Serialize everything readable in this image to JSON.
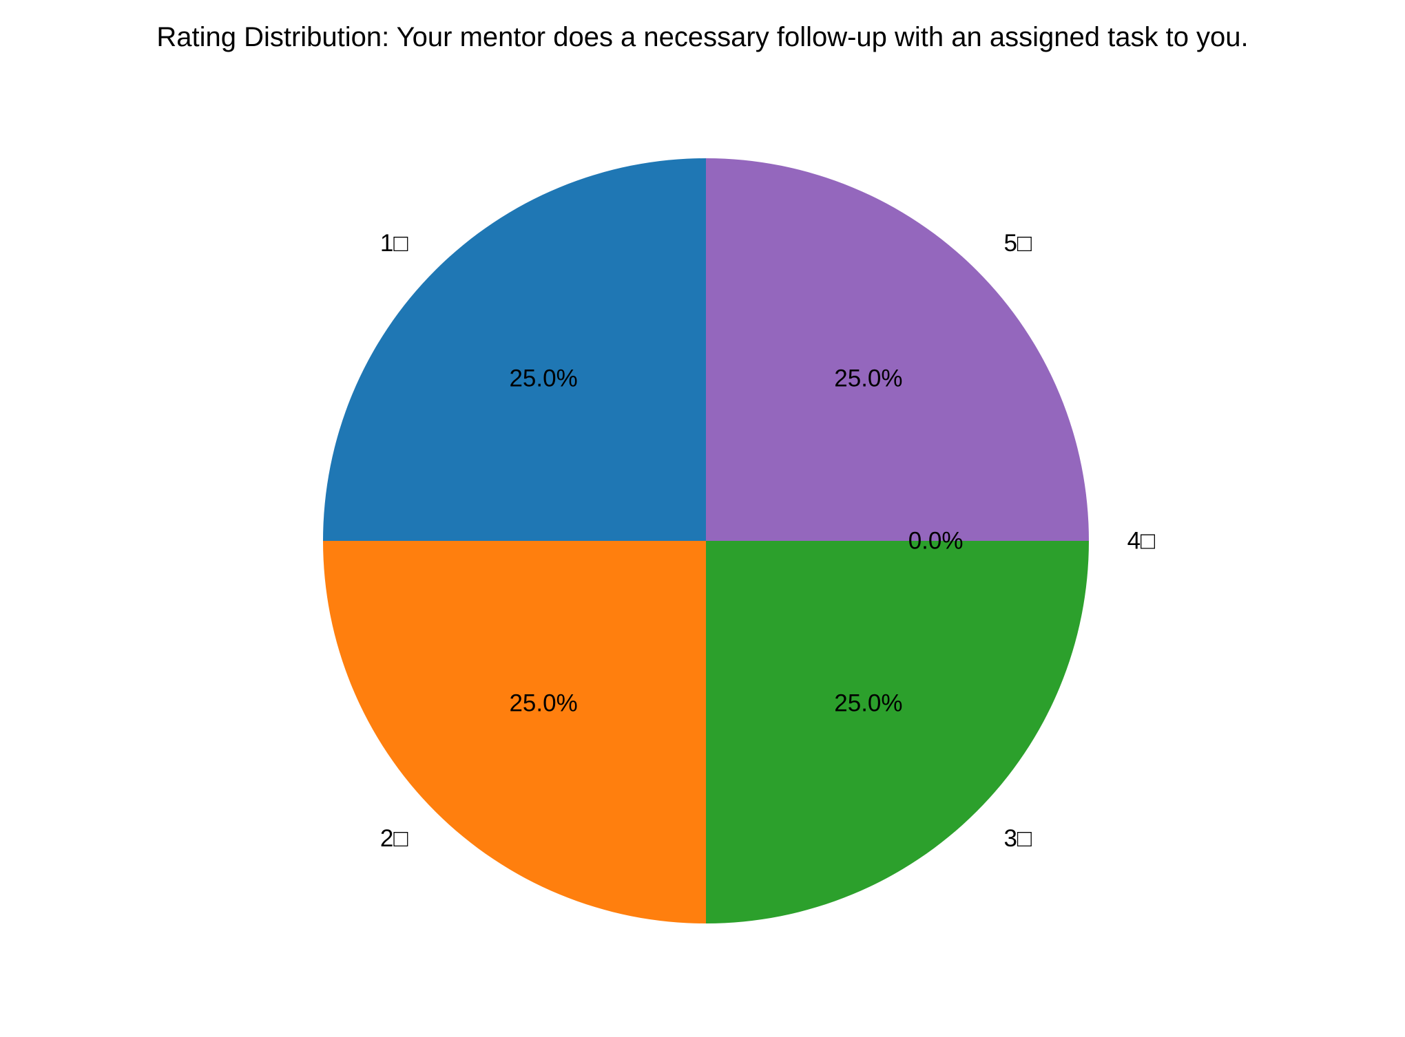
{
  "chart_data": {
    "type": "pie",
    "title": "Rating Distribution: Your mentor does a necessary follow-up with an assigned task to you.",
    "start_angle_deg": 90,
    "direction": "counterclockwise",
    "slices": [
      {
        "label": "1□",
        "value": 25.0,
        "pct_label": "25.0%",
        "color": "#1f77b4"
      },
      {
        "label": "2□",
        "value": 25.0,
        "pct_label": "25.0%",
        "color": "#ff7f0e"
      },
      {
        "label": "3□",
        "value": 25.0,
        "pct_label": "25.0%",
        "color": "#2ca02c"
      },
      {
        "label": "4□",
        "value": 0.0,
        "pct_label": "0.0%",
        "color": "#d62728"
      },
      {
        "label": "5□",
        "value": 25.0,
        "pct_label": "25.0%",
        "color": "#9467bd"
      }
    ]
  }
}
